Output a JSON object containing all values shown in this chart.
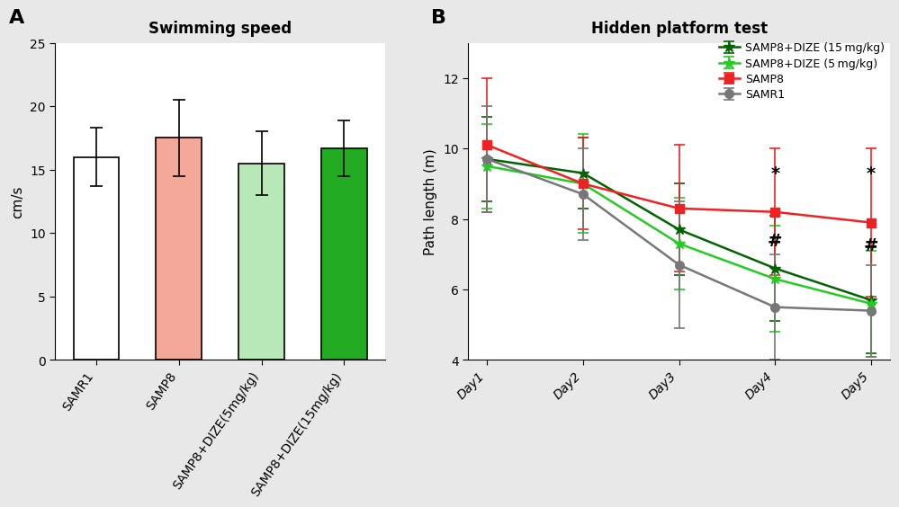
{
  "bar_categories": [
    "SAMR1",
    "SAMP8",
    "SAMP8+DIZE(5mg/kg)",
    "SAMP8+DIZE(15mg/kg)"
  ],
  "bar_values": [
    16.0,
    17.5,
    15.5,
    16.7
  ],
  "bar_errors": [
    2.3,
    3.0,
    2.5,
    2.2
  ],
  "bar_colors": [
    "#ffffff",
    "#f4a89a",
    "#b8e8b8",
    "#22aa22"
  ],
  "bar_edge_colors": [
    "#000000",
    "#000000",
    "#000000",
    "#000000"
  ],
  "bar_ylabel": "cm/s",
  "bar_ylim": [
    0,
    25
  ],
  "bar_yticks": [
    0,
    5,
    10,
    15,
    20,
    25
  ],
  "bar_title": "Swimming speed",
  "panel_a_label": "A",
  "panel_b_label": "B",
  "line_days": [
    1,
    2,
    3,
    4,
    5
  ],
  "line_day_labels": [
    "Day1",
    "Day2",
    "Day3",
    "Day4",
    "Day5"
  ],
  "line_title": "Hidden platform test",
  "line_ylabel": "Path length (m)",
  "line_ylim": [
    4,
    13
  ],
  "line_yticks": [
    4,
    6,
    8,
    10,
    12
  ],
  "series": {
    "SAMP8+DIZE (15 mg/kg)": {
      "values": [
        9.7,
        9.3,
        7.7,
        6.6,
        5.7
      ],
      "errors": [
        1.2,
        1.0,
        1.3,
        1.5,
        1.5
      ],
      "color": "#006400",
      "marker": "*",
      "markersize": 9,
      "linestyle": "-"
    },
    "SAMP8+DIZE (5 mg/kg)": {
      "values": [
        9.5,
        9.0,
        7.3,
        6.3,
        5.6
      ],
      "errors": [
        1.2,
        1.4,
        1.3,
        1.5,
        1.5
      ],
      "color": "#22cc22",
      "marker": "*",
      "markersize": 9,
      "linestyle": "-"
    },
    "SAMP8": {
      "values": [
        10.1,
        9.0,
        8.3,
        8.2,
        7.9
      ],
      "errors": [
        1.9,
        1.3,
        1.8,
        1.8,
        2.1
      ],
      "color": "#ee2222",
      "marker": "s",
      "markersize": 7,
      "linestyle": "-"
    },
    "SAMR1": {
      "values": [
        9.7,
        8.7,
        6.7,
        5.5,
        5.4
      ],
      "errors": [
        1.5,
        1.3,
        1.8,
        1.5,
        1.3
      ],
      "color": "#777777",
      "marker": "o",
      "markersize": 7,
      "linestyle": "-"
    }
  },
  "star_annotations": [
    {
      "day": 4,
      "y": 9.05,
      "text": "*"
    },
    {
      "day": 5,
      "y": 9.05,
      "text": "*"
    }
  ],
  "hash_annotations": [
    {
      "day": 4,
      "y": 7.15,
      "text": "#"
    },
    {
      "day": 5,
      "y": 7.0,
      "text": "#"
    }
  ],
  "legend_order": [
    "SAMP8+DIZE (15 mg/kg)",
    "SAMP8+DIZE (5 mg/kg)",
    "SAMP8",
    "SAMR1"
  ],
  "bg_color": "#e8e8e8",
  "plot_bg_color": "#ffffff"
}
